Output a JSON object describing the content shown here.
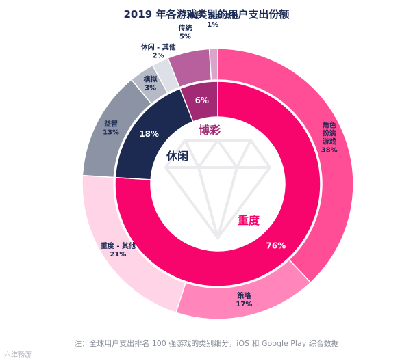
{
  "chart_data": {
    "type": "pie",
    "title": "2019 年各游戏类别的用户支出份额",
    "inner_ring": [
      {
        "name": "重度",
        "value": 76,
        "label": "76%",
        "color": "#f7056d"
      },
      {
        "name": "休闲",
        "value": 18,
        "label": "18%",
        "color": "#1c2a52"
      },
      {
        "name": "博彩",
        "value": 6,
        "label": "6%",
        "color": "#a22a74"
      }
    ],
    "outer_ring": [
      {
        "name": "角色扮演游戏",
        "name_lines": [
          "角色",
          "扮演",
          "游戏"
        ],
        "value": 38,
        "label": "38%",
        "parent": "重度",
        "color": "#ff4d96"
      },
      {
        "name": "策略",
        "name_lines": [
          "策略"
        ],
        "value": 17,
        "label": "17%",
        "parent": "重度",
        "color": "#ff85ba"
      },
      {
        "name": "重度 - 其他",
        "name_lines": [
          "重度 - 其他"
        ],
        "value": 21,
        "label": "21%",
        "parent": "重度",
        "color": "#ffd4e6"
      },
      {
        "name": "益智",
        "name_lines": [
          "益智"
        ],
        "value": 13,
        "label": "13%",
        "parent": "休闲",
        "color": "#8c93a5"
      },
      {
        "name": "模拟",
        "name_lines": [
          "模拟"
        ],
        "value": 3,
        "label": "3%",
        "parent": "休闲",
        "color": "#b5bac6"
      },
      {
        "name": "休闲 - 其他",
        "name_lines": [
          "休闲 - 其他"
        ],
        "value": 2,
        "label": "2%",
        "parent": "休闲",
        "color": "#dde0e6"
      },
      {
        "name": "传统",
        "name_lines": [
          "传统"
        ],
        "value": 5,
        "label": "5%",
        "parent": "博彩",
        "color": "#b7609d"
      },
      {
        "name": "博彩 - 混合/其他",
        "name_lines": [
          "博彩 - 混合/其他"
        ],
        "value": 1,
        "label": "1%",
        "parent": "博彩",
        "color": "#d9a5c8"
      }
    ],
    "category_labels": [
      {
        "name": "重度",
        "color": "#f7056d"
      },
      {
        "name": "休闲",
        "color": "#1c2a52"
      },
      {
        "name": "博彩",
        "color": "#a22a74"
      }
    ]
  },
  "footnote": "注：全球用户支出排名 100 强游戏的类别细分，iOS 和 Google Play 综合数据",
  "watermark": "六维畅游"
}
